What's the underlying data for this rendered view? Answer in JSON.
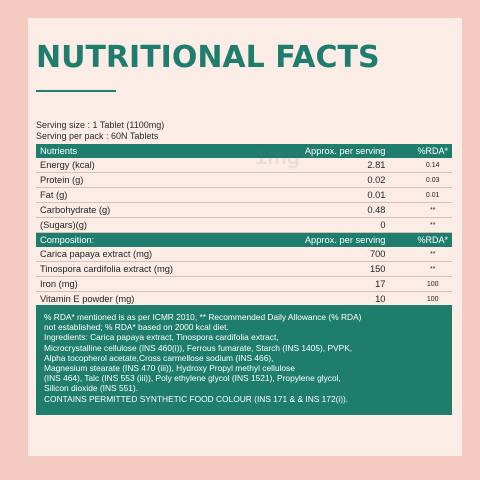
{
  "title": "NUTRITIONAL FACTS",
  "serving_size": "Serving size : 1 Tablet (1100mg)",
  "serving_per_pack": "Serving per pack : 60N Tablets",
  "watermark": "1mg",
  "nutrients_header": {
    "col1": "Nutrients",
    "col2": "Approx. per serving",
    "col3": "%RDA*"
  },
  "nutrients": [
    {
      "name": "Energy (kcal)",
      "value": "2.81",
      "rda": "0.14"
    },
    {
      "name": "Protein (g)",
      "value": "0.02",
      "rda": "0.03"
    },
    {
      "name": "Fat (g)",
      "value": "0.01",
      "rda": "0.01"
    },
    {
      "name": "Carbohydrate (g)",
      "value": "0.48",
      "rda": "**"
    },
    {
      "name": "(Sugars)(g)",
      "value": "0",
      "rda": "**"
    }
  ],
  "composition_header": {
    "col1": "Composition:",
    "col2": "Approx. per serving",
    "col3": "%RDA*"
  },
  "composition": [
    {
      "name": "Carica papaya extract (mg)",
      "value": "700",
      "rda": "**"
    },
    {
      "name": "Tinospora cardifolia extract (mg)",
      "value": "150",
      "rda": "**"
    },
    {
      "name": "Iron (mg)",
      "value": "17",
      "rda": "100"
    },
    {
      "name": "Vitamin E powder (mg)",
      "value": "10",
      "rda": "100"
    }
  ],
  "notes": [
    "% RDA* mentioned is as per ICMR 2010, ** Recommended Daily Allowance (% RDA)",
    "not established; % RDA* based on 2000 kcal diet.",
    "Ingredients: Carica papaya extract, Tinospora cardifolia extract,",
    "Microcrystalline cellulose (INS 460(i)), Ferrous fumarate, Starch (INS 1405), PVPK,",
    "Alpha tocopherol acetate,Cross carmellose sodium (INS 466),",
    "Magnesium stearate (INS 470 (iii)), Hydroxy Propyl methyl cellulose",
    "(INS 464), Talc (INS 553 (iii)), Poly ethylene glycol (INS 1521), Propylene glycol,",
    "Silicon dioxide (INS 551).",
    "CONTAINS PERMITTED SYNTHETIC FOOD COLOUR (INS 171 & & INS 172(i))."
  ]
}
